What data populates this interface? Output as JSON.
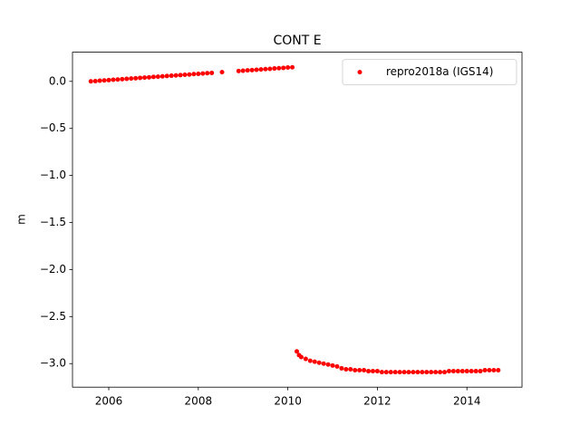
{
  "chart_data": {
    "type": "scatter",
    "title": "CONT E",
    "y_label": "m",
    "x": [
      2005.6,
      2005.7,
      2005.8,
      2005.9,
      2006.0,
      2006.1,
      2006.2,
      2006.3,
      2006.4,
      2006.5,
      2006.6,
      2006.7,
      2006.8,
      2006.9,
      2007.0,
      2007.1,
      2007.2,
      2007.3,
      2007.4,
      2007.5,
      2007.6,
      2007.7,
      2007.8,
      2007.9,
      2008.0,
      2008.1,
      2008.2,
      2008.3,
      2008.53,
      2008.9,
      2009.0,
      2009.1,
      2009.2,
      2009.3,
      2009.4,
      2009.5,
      2009.6,
      2009.7,
      2009.8,
      2009.9,
      2010.0,
      2010.1,
      2010.2,
      2010.25,
      2010.3,
      2010.4,
      2010.5,
      2010.6,
      2010.7,
      2010.8,
      2010.9,
      2011.0,
      2011.1,
      2011.2,
      2011.3,
      2011.4,
      2011.5,
      2011.6,
      2011.7,
      2011.8,
      2011.9,
      2012.0,
      2012.1,
      2012.2,
      2012.3,
      2012.4,
      2012.5,
      2012.6,
      2012.7,
      2012.8,
      2012.9,
      2013.0,
      2013.1,
      2013.2,
      2013.3,
      2013.4,
      2013.5,
      2013.6,
      2013.7,
      2013.8,
      2013.9,
      2014.0,
      2014.1,
      2014.2,
      2014.3,
      2014.4,
      2014.5,
      2014.6,
      2014.7
    ],
    "series": [
      {
        "name": "repro2018a (IGS14)",
        "color": "#ff0000",
        "values": [
          0.0,
          0.003,
          0.007,
          0.01,
          0.013,
          0.017,
          0.02,
          0.023,
          0.027,
          0.03,
          0.033,
          0.037,
          0.04,
          0.043,
          0.047,
          0.05,
          0.053,
          0.057,
          0.06,
          0.063,
          0.067,
          0.07,
          0.073,
          0.077,
          0.08,
          0.083,
          0.087,
          0.09,
          0.098,
          0.11,
          0.113,
          0.117,
          0.12,
          0.123,
          0.127,
          0.13,
          0.133,
          0.137,
          0.14,
          0.143,
          0.147,
          0.15,
          -2.87,
          -2.91,
          -2.93,
          -2.95,
          -2.97,
          -2.98,
          -2.99,
          -3.0,
          -3.01,
          -3.02,
          -3.03,
          -3.05,
          -3.06,
          -3.06,
          -3.07,
          -3.07,
          -3.07,
          -3.08,
          -3.08,
          -3.08,
          -3.09,
          -3.09,
          -3.09,
          -3.09,
          -3.09,
          -3.09,
          -3.09,
          -3.09,
          -3.09,
          -3.09,
          -3.09,
          -3.09,
          -3.09,
          -3.09,
          -3.09,
          -3.08,
          -3.08,
          -3.08,
          -3.08,
          -3.08,
          -3.08,
          -3.08,
          -3.08,
          -3.07,
          -3.07,
          -3.07,
          -3.07
        ]
      }
    ],
    "xlim": [
      2005.19,
      2015.23
    ],
    "xticks": [
      2006,
      2008,
      2010,
      2012,
      2014
    ],
    "ylim": [
      -3.25,
      0.31
    ],
    "yticks": [
      {
        "value": 0,
        "label": "0.0"
      },
      {
        "value": -0.5,
        "label": "−0.5"
      },
      {
        "value": -1.0,
        "label": "−1.0"
      },
      {
        "value": -1.5,
        "label": "−1.5"
      },
      {
        "value": -2.0,
        "label": "−2.0"
      },
      {
        "value": -2.5,
        "label": "−2.5"
      },
      {
        "value": -3.0,
        "label": "−3.0"
      }
    ],
    "legend": "upper right"
  }
}
